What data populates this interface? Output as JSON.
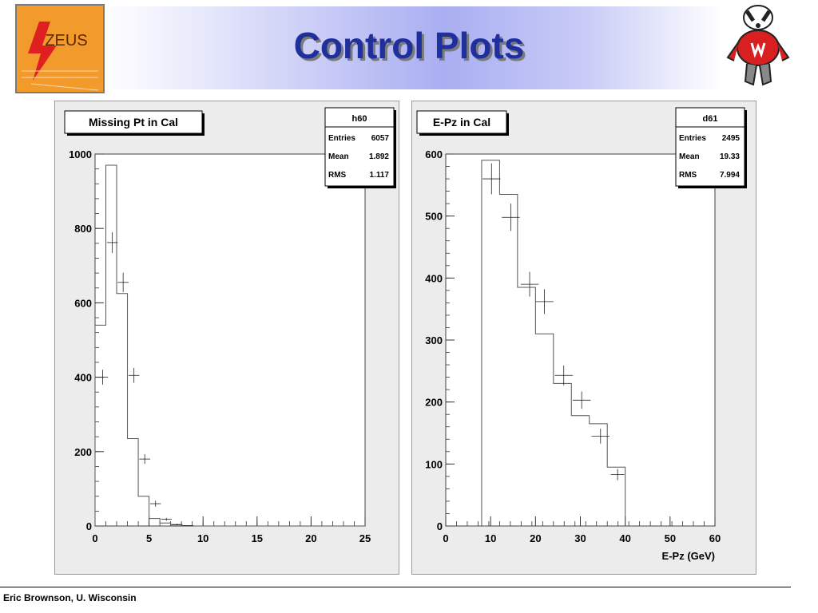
{
  "slide": {
    "title": "Control Plots",
    "footer": "Eric Brownson, U. Wisconsin",
    "logo_left": {
      "text": "ZEUS",
      "icon": "zeus-logo-icon"
    },
    "logo_right": {
      "icon": "badger-mascot-icon"
    },
    "colors": {
      "title": "#1f2f9c",
      "zeus_orange": "#f39a2c",
      "zeus_red": "#e02020"
    }
  },
  "chart_data": [
    {
      "type": "histogram",
      "title": "Missing Pt in Cal",
      "xlabel": "",
      "ylabel": "",
      "xlim": [
        0,
        25
      ],
      "ylim": [
        0,
        1000
      ],
      "x_ticks": [
        0,
        5,
        10,
        15,
        20,
        25
      ],
      "y_ticks": [
        0,
        200,
        400,
        600,
        800,
        1000
      ],
      "stats": {
        "name": "h60",
        "rows": [
          {
            "label": "Entries",
            "value": "6057"
          },
          {
            "label": "Mean",
            "value": "1.892"
          },
          {
            "label": "RMS",
            "value": "1.117"
          }
        ]
      },
      "histogram": {
        "edges": [
          0,
          1,
          2,
          3,
          4,
          5,
          6,
          7,
          8,
          9,
          10,
          11,
          12,
          13,
          14,
          15,
          16,
          17,
          18,
          19,
          20,
          21,
          22,
          23,
          24,
          25
        ],
        "values": [
          540,
          970,
          625,
          235,
          80,
          20,
          8,
          3,
          1,
          0,
          0,
          0,
          0,
          0,
          0,
          0,
          0,
          0,
          0,
          0,
          0,
          0,
          0,
          0,
          0
        ]
      },
      "points": {
        "x": [
          0.7,
          1.6,
          2.6,
          3.6,
          4.6,
          5.6,
          6.6,
          7.6,
          8.6
        ],
        "y": [
          400,
          762,
          655,
          405,
          180,
          60,
          18,
          4,
          1
        ],
        "xerr": [
          0.5,
          0.5,
          0.5,
          0.5,
          0.5,
          0.5,
          0.5,
          0.5,
          0.5
        ],
        "yerr": [
          20,
          28,
          26,
          20,
          13,
          8,
          4,
          2,
          1
        ]
      }
    },
    {
      "type": "histogram",
      "title": "E-Pz in Cal",
      "xlabel": "E-Pz (GeV)",
      "ylabel": "",
      "xlim": [
        0,
        60
      ],
      "ylim": [
        0,
        600
      ],
      "x_ticks": [
        0,
        10,
        20,
        30,
        40,
        50,
        60
      ],
      "y_ticks": [
        0,
        100,
        200,
        300,
        400,
        500,
        600
      ],
      "stats": {
        "name": "d61",
        "rows": [
          {
            "label": "Entries",
            "value": "2495"
          },
          {
            "label": "Mean",
            "value": "19.33"
          },
          {
            "label": "RMS",
            "value": "7.994"
          }
        ]
      },
      "histogram": {
        "edges": [
          8,
          12,
          16,
          20,
          24,
          28,
          32,
          36,
          40
        ],
        "values": [
          590,
          535,
          385,
          310,
          230,
          178,
          165,
          95
        ]
      },
      "points": {
        "x": [
          10.2,
          14.5,
          18.7,
          22.0,
          26.3,
          30.3,
          34.5,
          38.3
        ],
        "y": [
          560,
          498,
          390,
          362,
          243,
          203,
          145,
          83
        ],
        "xerr": [
          2,
          2,
          2,
          2,
          2,
          2,
          2,
          1.5
        ],
        "yerr": [
          25,
          22,
          20,
          20,
          16,
          14,
          12,
          9
        ]
      }
    }
  ]
}
